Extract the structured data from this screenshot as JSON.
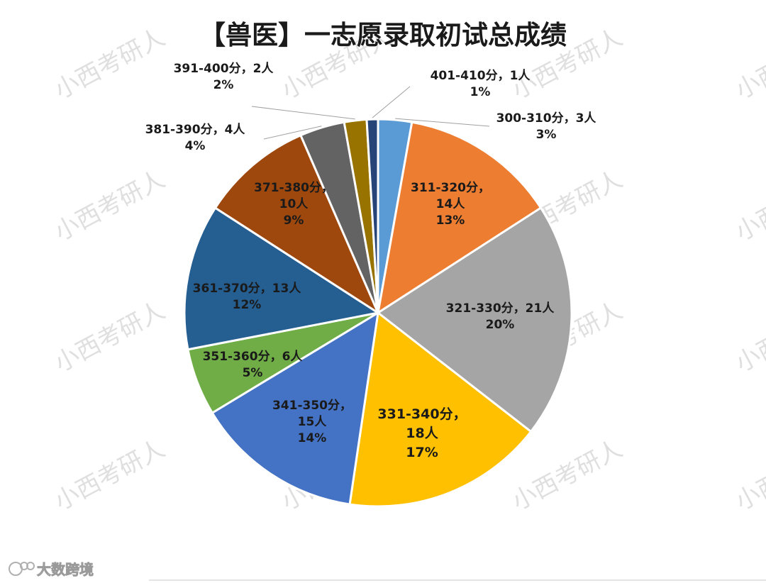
{
  "chart_data": {
    "type": "pie",
    "title": "【兽医】一志愿录取初试总成绩",
    "slices": [
      {
        "range": "300-310分",
        "count": 3,
        "percent": "3%",
        "label_lines": [
          "300-310分，3人",
          "3%"
        ],
        "color": "#5B9BD5"
      },
      {
        "range": "311-320分",
        "count": 14,
        "percent": "13%",
        "label_lines": [
          "311-320分，",
          "14人",
          "13%"
        ],
        "color": "#ED7D31"
      },
      {
        "range": "321-330分",
        "count": 21,
        "percent": "20%",
        "label_lines": [
          "321-330分，21人",
          "20%"
        ],
        "color": "#A5A5A5"
      },
      {
        "range": "331-340分",
        "count": 18,
        "percent": "17%",
        "label_lines": [
          "331-340分，",
          "18人",
          "17%"
        ],
        "color": "#FFC000"
      },
      {
        "range": "341-350分",
        "count": 15,
        "percent": "14%",
        "label_lines": [
          "341-350分，",
          "15人",
          "14%"
        ],
        "color": "#4472C4"
      },
      {
        "range": "351-360分",
        "count": 6,
        "percent": "5%",
        "label_lines": [
          "351-360分，6人",
          "5%"
        ],
        "color": "#70AD47"
      },
      {
        "range": "361-370分",
        "count": 13,
        "percent": "12%",
        "label_lines": [
          "361-370分，13人",
          "12%"
        ],
        "color": "#255E91"
      },
      {
        "range": "371-380分",
        "count": 10,
        "percent": "9%",
        "label_lines": [
          "371-380分，",
          "10人",
          "9%"
        ],
        "color": "#9E480E"
      },
      {
        "range": "381-390分",
        "count": 4,
        "percent": "4%",
        "label_lines": [
          "381-390分，4人",
          "4%"
        ],
        "color": "#636363"
      },
      {
        "range": "391-400分",
        "count": 2,
        "percent": "2%",
        "label_lines": [
          "391-400分，2人",
          "2%"
        ],
        "color": "#997300"
      },
      {
        "range": "401-410分",
        "count": 1,
        "percent": "1%",
        "label_lines": [
          "401-410分，1人",
          "1%"
        ],
        "color": "#264478"
      }
    ]
  },
  "watermark": "小西考研人",
  "brand": {
    "text": "大数跨境",
    "icon": "brand-logo-icon"
  }
}
